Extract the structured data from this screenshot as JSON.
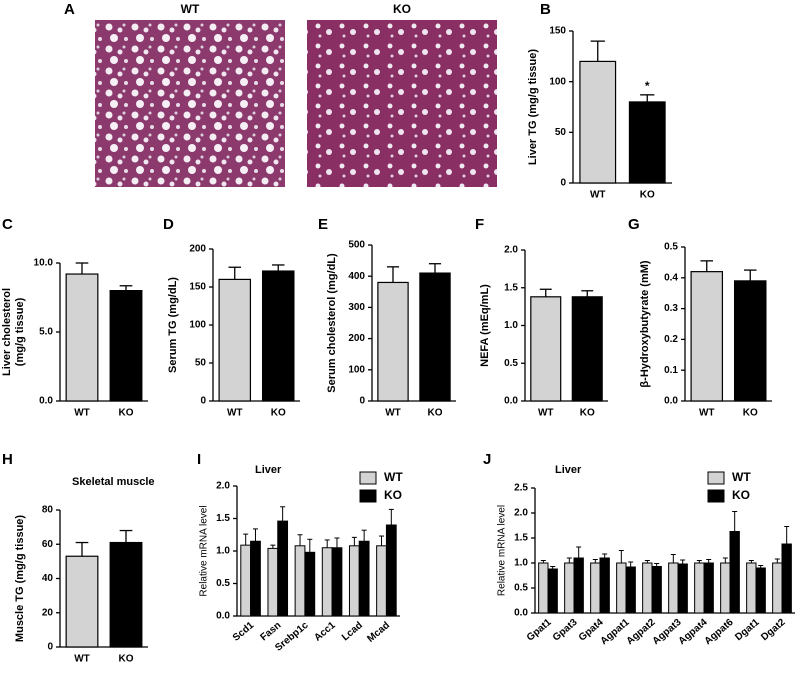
{
  "figure_a": {
    "label": "A",
    "titles": [
      "WT",
      "KO"
    ]
  },
  "chart_data": [
    {
      "type": "bar",
      "label": "B",
      "ylabel": "Liver TG (mg/g tissue)",
      "categories": [
        "WT",
        "KO"
      ],
      "values": [
        120,
        80
      ],
      "errors": [
        20,
        7
      ],
      "colors": [
        "#d3d3d3",
        "#000000"
      ],
      "ylim": [
        0,
        150
      ],
      "yticks": [
        0,
        50,
        100,
        150
      ],
      "annotation": "*"
    },
    {
      "type": "bar",
      "label": "C",
      "ylabel": [
        "Liver cholesterol",
        "(mg/g tissue)"
      ],
      "categories": [
        "WT",
        "KO"
      ],
      "values": [
        9.2,
        8.0
      ],
      "errors": [
        0.8,
        0.35
      ],
      "colors": [
        "#d3d3d3",
        "#000000"
      ],
      "ylim": [
        0,
        10
      ],
      "yticks": [
        {
          "value": 0,
          "label": "0.0"
        },
        {
          "value": 5,
          "label": "5.0"
        },
        {
          "value": 10,
          "label": "10.0"
        }
      ]
    },
    {
      "type": "bar",
      "label": "D",
      "ylabel": "Serum TG (mg/dL)",
      "categories": [
        "WT",
        "KO"
      ],
      "values": [
        160,
        171
      ],
      "errors": [
        16,
        8
      ],
      "colors": [
        "#d3d3d3",
        "#000000"
      ],
      "ylim": [
        0,
        200
      ],
      "yticks": [
        0,
        50,
        100,
        150,
        200
      ]
    },
    {
      "type": "bar",
      "label": "E",
      "ylabel": "Serum cholesterol (mg/dL)",
      "categories": [
        "WT",
        "KO"
      ],
      "values": [
        380,
        410
      ],
      "errors": [
        50,
        30
      ],
      "colors": [
        "#d3d3d3",
        "#000000"
      ],
      "ylim": [
        0,
        500
      ],
      "yticks": [
        0,
        100,
        200,
        300,
        400,
        500
      ]
    },
    {
      "type": "bar",
      "label": "F",
      "ylabel": "NEFA (mEq/mL)",
      "categories": [
        "WT",
        "KO"
      ],
      "values": [
        1.38,
        1.38
      ],
      "errors": [
        0.1,
        0.08
      ],
      "colors": [
        "#d3d3d3",
        "#000000"
      ],
      "ylim": [
        0,
        2
      ],
      "yticks": [
        {
          "value": 0,
          "label": "0.0"
        },
        {
          "value": 0.5,
          "label": "0.5"
        },
        {
          "value": 1,
          "label": "1.0"
        },
        {
          "value": 1.5,
          "label": "1.5"
        },
        {
          "value": 2,
          "label": "2.0"
        }
      ]
    },
    {
      "type": "bar",
      "label": "G",
      "ylabel": "β-Hydroxybutyrate (mM)",
      "categories": [
        "WT",
        "KO"
      ],
      "values": [
        0.42,
        0.39
      ],
      "errors": [
        0.035,
        0.035
      ],
      "colors": [
        "#d3d3d3",
        "#000000"
      ],
      "ylim": [
        0,
        0.5
      ],
      "yticks": [
        {
          "value": 0,
          "label": "0.0"
        },
        0.1,
        0.2,
        0.3,
        0.4,
        0.5
      ]
    },
    {
      "type": "bar",
      "label": "H",
      "title": "Skeletal muscle",
      "ylabel": "Muscle TG (mg/g tissue)",
      "categories": [
        "WT",
        "KO"
      ],
      "values": [
        53,
        61
      ],
      "errors": [
        8,
        7
      ],
      "colors": [
        "#d3d3d3",
        "#000000"
      ],
      "ylim": [
        0,
        80
      ],
      "yticks": [
        0,
        20,
        40,
        60,
        80
      ]
    },
    {
      "type": "grouped-bar",
      "label": "I",
      "title": "Liver",
      "ylabel": "Relative mRNA level",
      "categories": [
        "Scd1",
        "Fasn",
        "Srebp1c",
        "Acc1",
        "Lcad",
        "Mcad"
      ],
      "series": [
        {
          "name": "WT",
          "color": "#d3d3d3",
          "values": [
            1.09,
            1.04,
            1.08,
            1.05,
            1.08,
            1.08
          ],
          "errors": [
            0.17,
            0.05,
            0.17,
            0.12,
            0.13,
            0.15
          ]
        },
        {
          "name": "KO",
          "color": "#000000",
          "values": [
            1.15,
            1.46,
            0.98,
            1.05,
            1.15,
            1.4
          ],
          "errors": [
            0.19,
            0.22,
            0.2,
            0.15,
            0.17,
            0.24
          ]
        }
      ],
      "ylim": [
        0,
        2
      ],
      "yticks": [
        {
          "value": 0,
          "label": "0.0"
        },
        {
          "value": 0.5,
          "label": "0.5"
        },
        {
          "value": 1,
          "label": "1.0"
        },
        {
          "value": 1.5,
          "label": "1.5"
        },
        {
          "value": 2,
          "label": "2.0"
        }
      ]
    },
    {
      "type": "grouped-bar",
      "label": "J",
      "title": "Liver",
      "ylabel": "Relative mRNA level",
      "categories": [
        "Gpat1",
        "Gpat3",
        "Gpat4",
        "Agpat1",
        "Agpat2",
        "Agpat3",
        "Agpat4",
        "Agpat6",
        "Dgat1",
        "Dgat2"
      ],
      "series": [
        {
          "name": "WT",
          "color": "#d3d3d3",
          "values": [
            1.0,
            1.0,
            1.0,
            1.0,
            1.0,
            1.0,
            1.0,
            1.0,
            1.0,
            1.0
          ],
          "errors": [
            0.05,
            0.1,
            0.07,
            0.25,
            0.05,
            0.17,
            0.05,
            0.1,
            0.05,
            0.08
          ]
        },
        {
          "name": "KO",
          "color": "#000000",
          "values": [
            0.88,
            1.1,
            1.1,
            0.92,
            0.93,
            0.98,
            1.0,
            1.63,
            0.9,
            1.38
          ],
          "errors": [
            0.05,
            0.22,
            0.08,
            0.1,
            0.06,
            0.08,
            0.07,
            0.4,
            0.05,
            0.35
          ]
        }
      ],
      "ylim": [
        0,
        2.5
      ],
      "yticks": [
        {
          "value": 0,
          "label": "0.0"
        },
        {
          "value": 0.5,
          "label": "0.5"
        },
        {
          "value": 1,
          "label": "1.0"
        },
        {
          "value": 1.5,
          "label": "1.5"
        },
        {
          "value": 2,
          "label": "2.0"
        },
        {
          "value": 2.5,
          "label": "2.5"
        }
      ]
    }
  ]
}
